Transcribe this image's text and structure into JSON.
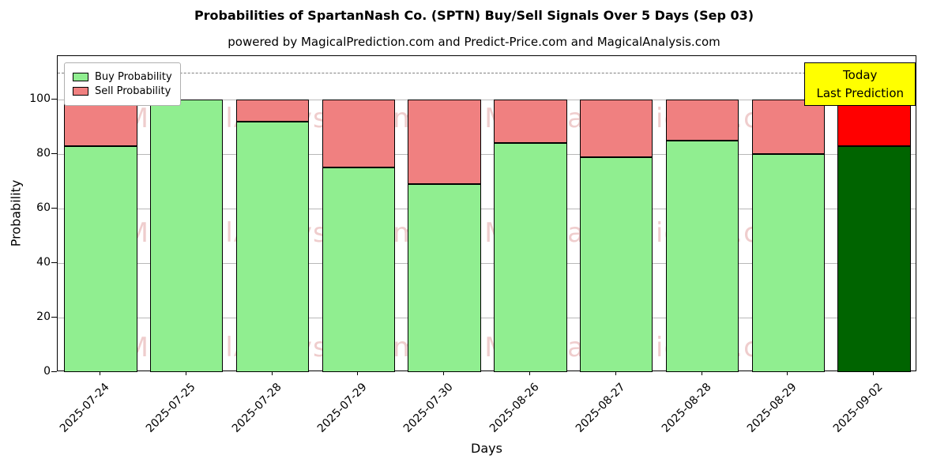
{
  "chart_data": {
    "type": "bar",
    "stacked": true,
    "title": "Probabilities of SpartanNash Co. (SPTN) Buy/Sell Signals Over 5 Days (Sep 03)",
    "subtitle": "powered by MagicalPrediction.com and Predict-Price.com and MagicalAnalysis.com",
    "xlabel": "Days",
    "ylabel": "Probability",
    "categories": [
      "2025-07-24",
      "2025-07-25",
      "2025-07-28",
      "2025-07-29",
      "2025-07-30",
      "2025-08-26",
      "2025-08-27",
      "2025-08-28",
      "2025-08-29",
      "2025-09-02"
    ],
    "series": [
      {
        "name": "Buy Probability",
        "values": [
          83,
          100,
          92,
          75,
          69,
          84,
          79,
          85,
          80,
          83
        ]
      },
      {
        "name": "Sell Probability",
        "values": [
          17,
          0,
          8,
          25,
          31,
          16,
          21,
          15,
          20,
          17
        ]
      }
    ],
    "ylim": [
      0,
      116
    ],
    "yticks": [
      0,
      20,
      40,
      60,
      80,
      100
    ],
    "grid": "horizontal-only",
    "legend_position": "upper-left",
    "dashed_line_y": 110,
    "last_bar_highlighted": true
  },
  "annotation": {
    "lines": [
      "Today",
      "Last Prediction"
    ]
  },
  "watermarks": {
    "left": "MagicalAnalysis.com",
    "right": "MagicalPrediction.com"
  },
  "colors": {
    "buy": "#90ee90",
    "sell": "#f08080",
    "today_buy": "#006400",
    "today_sell": "#ff0000",
    "annotation_bg": "#ffff00",
    "watermark": "#cd5c5c",
    "grid": "#b8b8b8",
    "dashed_line": "#7f7f7f"
  }
}
